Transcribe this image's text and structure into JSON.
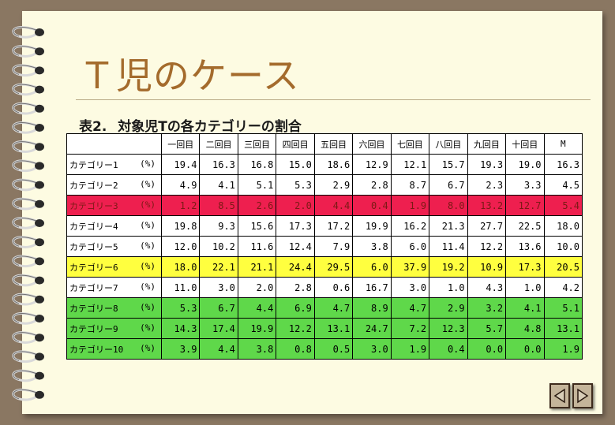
{
  "title": "Ｔ児のケース",
  "caption": {
    "number": "表2.",
    "text": "対象児Tの各カテゴリーの割合"
  },
  "columns": [
    "",
    "一回目",
    "二回目",
    "三回目",
    "四回目",
    "五回目",
    "六回目",
    "七回目",
    "八回目",
    "九回目",
    "十回目",
    "M"
  ],
  "unit": "(%)",
  "rows": [
    {
      "label": "カテゴリー1",
      "values": [
        "19.4",
        "16.3",
        "16.8",
        "15.0",
        "18.6",
        "12.9",
        "12.1",
        "15.7",
        "19.3",
        "19.0",
        "16.3"
      ],
      "highlight": "none"
    },
    {
      "label": "カテゴリー2",
      "values": [
        "4.9",
        "4.1",
        "5.1",
        "5.3",
        "2.9",
        "2.8",
        "8.7",
        "6.7",
        "2.3",
        "3.3",
        "4.5"
      ],
      "highlight": "none"
    },
    {
      "label": "カテゴリー3",
      "values": [
        "1.2",
        "8.5",
        "2.6",
        "2.0",
        "4.4",
        "0.4",
        "1.9",
        "8.0",
        "13.2",
        "12.7",
        "5.4"
      ],
      "highlight": "red"
    },
    {
      "label": "カテゴリー4",
      "values": [
        "19.8",
        "9.3",
        "15.6",
        "17.3",
        "17.2",
        "19.9",
        "16.2",
        "21.3",
        "27.7",
        "22.5",
        "18.0"
      ],
      "highlight": "none"
    },
    {
      "label": "カテゴリー5",
      "values": [
        "12.0",
        "10.2",
        "11.6",
        "12.4",
        "7.9",
        "3.8",
        "6.0",
        "11.4",
        "12.2",
        "13.6",
        "10.0"
      ],
      "highlight": "none"
    },
    {
      "label": "カテゴリー6",
      "values": [
        "18.0",
        "22.1",
        "21.1",
        "24.4",
        "29.5",
        "6.0",
        "37.9",
        "19.2",
        "10.9",
        "17.3",
        "20.5"
      ],
      "highlight": "yellow"
    },
    {
      "label": "カテゴリー7",
      "values": [
        "11.0",
        "3.0",
        "2.0",
        "2.8",
        "0.6",
        "16.7",
        "3.0",
        "1.0",
        "4.3",
        "1.0",
        "4.2"
      ],
      "highlight": "none"
    },
    {
      "label": "カテゴリー8",
      "values": [
        "5.3",
        "6.7",
        "4.4",
        "6.9",
        "4.7",
        "8.9",
        "4.7",
        "2.9",
        "3.2",
        "4.1",
        "5.1"
      ],
      "highlight": "green"
    },
    {
      "label": "カテゴリー9",
      "values": [
        "14.3",
        "17.4",
        "19.9",
        "12.2",
        "13.1",
        "24.7",
        "7.2",
        "12.3",
        "5.7",
        "4.8",
        "13.1"
      ],
      "highlight": "green"
    },
    {
      "label": "カテゴリー10",
      "values": [
        "3.9",
        "4.4",
        "3.8",
        "0.8",
        "0.5",
        "3.0",
        "1.9",
        "0.4",
        "0.0",
        "0.0",
        "1.9"
      ],
      "highlight": "green"
    }
  ],
  "colors": {
    "page": "#fdfbe2",
    "background": "#8a7762",
    "title": "#a46b2c",
    "red": "#ee1f4f",
    "yellow": "#ffff3f",
    "green": "#5fd84a"
  },
  "icons": {
    "prev": "triangle-left-icon",
    "next": "triangle-right-icon",
    "binding": "spiral-binding-icon"
  }
}
